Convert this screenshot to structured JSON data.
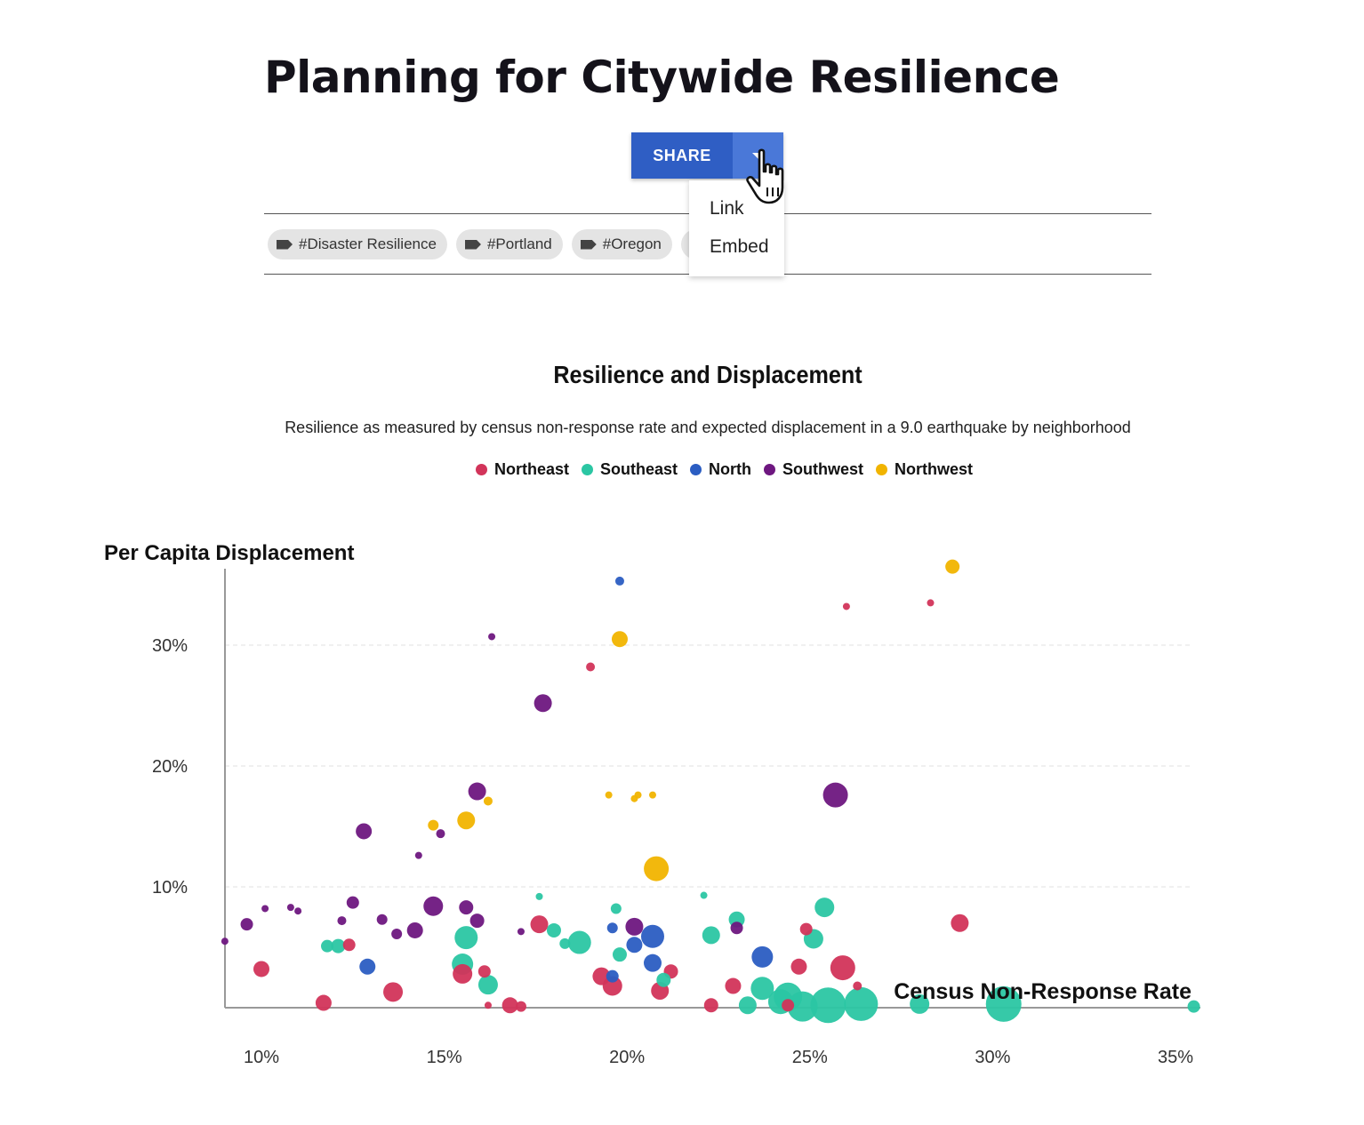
{
  "page": {
    "title": "Planning for Citywide Resilience"
  },
  "share": {
    "label": "SHARE",
    "menu": [
      "Link",
      "Embed"
    ]
  },
  "tags": [
    "#Disaster Resilience",
    "#Portland",
    "#Oregon",
    ""
  ],
  "colors": {
    "accent": "#2f5ec4",
    "Northeast": "#d2345a",
    "Southeast": "#2bc6a3",
    "North": "#2b5dc2",
    "Southwest": "#6e1780",
    "Northwest": "#f1b400"
  },
  "chart_data": {
    "type": "scatter",
    "title": "Resilience and Displacement",
    "subtitle": "Resilience as measured by census non-response rate and expected displacement in a 9.0 earthquake by neighborhood",
    "xlabel": "Census Non-Response Rate",
    "ylabel": "Per Capita Displacement",
    "xlim": [
      9,
      35.5
    ],
    "ylim": [
      0,
      36
    ],
    "xticks": [
      "10%",
      "15%",
      "20%",
      "25%",
      "30%",
      "35%"
    ],
    "xtick_values": [
      10,
      15,
      20,
      25,
      30,
      35
    ],
    "yticks": [
      "10%",
      "20%",
      "30%"
    ],
    "ytick_values": [
      10,
      20,
      30
    ],
    "grid": "horizontal dashed",
    "legend_position": "top-center",
    "series": [
      {
        "name": "Northeast",
        "points": [
          [
            10,
            3.2,
            9
          ],
          [
            11.7,
            0.4,
            9
          ],
          [
            12.4,
            5.2,
            7
          ],
          [
            13.6,
            1.3,
            11
          ],
          [
            15.5,
            2.8,
            11
          ],
          [
            16.1,
            3.0,
            7
          ],
          [
            16.2,
            0.2,
            4
          ],
          [
            16.8,
            0.2,
            9
          ],
          [
            17.1,
            0.1,
            6
          ],
          [
            17.6,
            6.9,
            10
          ],
          [
            19,
            28.2,
            5
          ],
          [
            28.3,
            33.5,
            4
          ],
          [
            26,
            33.2,
            4
          ],
          [
            19.3,
            2.6,
            10
          ],
          [
            19.6,
            1.8,
            11
          ],
          [
            20.9,
            1.4,
            10
          ],
          [
            21.2,
            3.0,
            8
          ],
          [
            22.3,
            0.2,
            8
          ],
          [
            22.9,
            1.8,
            9
          ],
          [
            24.7,
            3.4,
            9
          ],
          [
            24.9,
            6.5,
            7
          ],
          [
            25.9,
            3.3,
            14
          ],
          [
            26.3,
            1.8,
            5
          ],
          [
            29.1,
            7.0,
            10
          ],
          [
            24.4,
            0.2,
            7
          ]
        ]
      },
      {
        "name": "Southeast",
        "points": [
          [
            11.8,
            5.1,
            7
          ],
          [
            12.1,
            5.1,
            8
          ],
          [
            15.5,
            3.6,
            12
          ],
          [
            15.6,
            5.8,
            13
          ],
          [
            16.2,
            1.9,
            11
          ],
          [
            17.6,
            9.2,
            4
          ],
          [
            18.0,
            6.4,
            8
          ],
          [
            18.3,
            5.3,
            6
          ],
          [
            18.7,
            5.4,
            13
          ],
          [
            19.7,
            8.2,
            6
          ],
          [
            19.8,
            4.4,
            8
          ],
          [
            21.0,
            2.3,
            8
          ],
          [
            22.1,
            9.3,
            4
          ],
          [
            22.3,
            6.0,
            10
          ],
          [
            23.0,
            7.3,
            9
          ],
          [
            23.3,
            0.2,
            10
          ],
          [
            23.7,
            1.6,
            13
          ],
          [
            24.2,
            0.5,
            14
          ],
          [
            24.4,
            0.9,
            16
          ],
          [
            24.8,
            0.1,
            17
          ],
          [
            25.5,
            0.2,
            20
          ],
          [
            25.1,
            5.7,
            11
          ],
          [
            25.4,
            8.3,
            11
          ],
          [
            26.4,
            0.3,
            19
          ],
          [
            28.0,
            0.3,
            11
          ],
          [
            30.3,
            0.3,
            20
          ],
          [
            35.5,
            0.1,
            7
          ]
        ]
      },
      {
        "name": "North",
        "points": [
          [
            12.9,
            3.4,
            9
          ],
          [
            19.8,
            35.3,
            5
          ],
          [
            19.6,
            6.6,
            6
          ],
          [
            19.6,
            2.6,
            7
          ],
          [
            20.2,
            5.2,
            9
          ],
          [
            20.7,
            3.7,
            10
          ],
          [
            20.7,
            5.9,
            13
          ],
          [
            23.7,
            4.2,
            12
          ]
        ]
      },
      {
        "name": "Southwest",
        "points": [
          [
            9.0,
            5.5,
            4
          ],
          [
            9.6,
            6.9,
            7
          ],
          [
            10.1,
            8.2,
            4
          ],
          [
            10.8,
            8.3,
            4
          ],
          [
            11.0,
            8.0,
            4
          ],
          [
            12.2,
            7.2,
            5
          ],
          [
            12.5,
            8.7,
            7
          ],
          [
            12.8,
            14.6,
            9
          ],
          [
            13.3,
            7.3,
            6
          ],
          [
            13.7,
            6.1,
            6
          ],
          [
            14.2,
            6.4,
            9
          ],
          [
            14.3,
            12.6,
            4
          ],
          [
            14.7,
            8.4,
            11
          ],
          [
            14.9,
            14.4,
            5
          ],
          [
            15.6,
            8.3,
            8
          ],
          [
            15.9,
            7.2,
            8
          ],
          [
            15.9,
            17.9,
            10
          ],
          [
            16.3,
            30.7,
            4
          ],
          [
            17.1,
            6.3,
            4
          ],
          [
            17.7,
            25.2,
            10
          ],
          [
            20.2,
            6.7,
            10
          ],
          [
            23.0,
            6.6,
            7
          ],
          [
            25.7,
            17.6,
            14
          ]
        ]
      },
      {
        "name": "Northwest",
        "points": [
          [
            14.7,
            15.1,
            6
          ],
          [
            15.6,
            15.5,
            10
          ],
          [
            16.2,
            17.1,
            5
          ],
          [
            19.5,
            17.6,
            4
          ],
          [
            19.8,
            30.5,
            9
          ],
          [
            20.2,
            17.3,
            4
          ],
          [
            20.3,
            17.6,
            4
          ],
          [
            20.7,
            17.6,
            4
          ],
          [
            20.8,
            11.5,
            14
          ],
          [
            28.9,
            36.5,
            8
          ]
        ]
      }
    ]
  }
}
